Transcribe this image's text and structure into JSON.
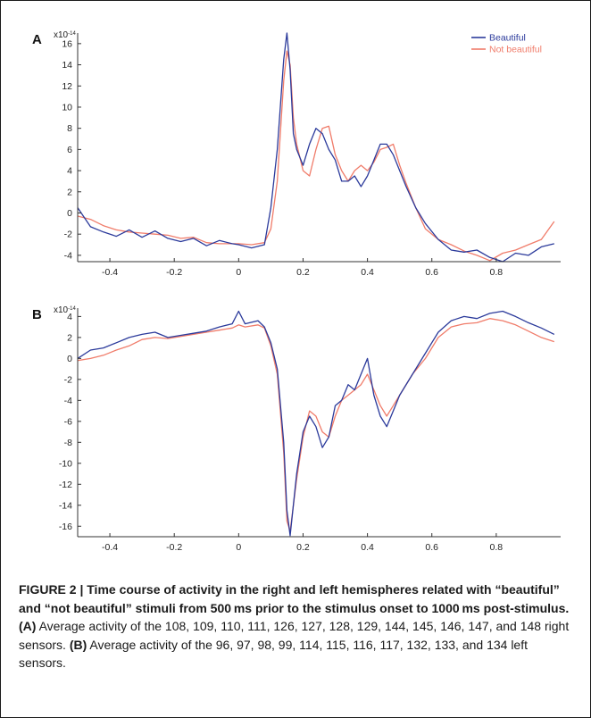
{
  "chart_data": [
    {
      "type": "line",
      "panel_label": "A",
      "scale_label": "x10",
      "scale_exponent": "-14",
      "xlim": [
        -0.5,
        1.0
      ],
      "ylim": [
        -4.6,
        17
      ],
      "x_ticks": [
        "-0.4",
        "-0.2",
        "0",
        "0.2",
        "0.4",
        "0.6",
        "0.8"
      ],
      "y_ticks": [
        "16",
        "14",
        "12",
        "10",
        "8",
        "6",
        "4",
        "2",
        "0",
        "-2",
        "-4"
      ],
      "legend": {
        "position": "top-right",
        "entries": [
          "Beautiful",
          "Not beautiful"
        ]
      },
      "series": [
        {
          "name": "Beautiful",
          "color": "#2b3a9b",
          "x": [
            -0.5,
            -0.46,
            -0.42,
            -0.38,
            -0.34,
            -0.3,
            -0.26,
            -0.22,
            -0.18,
            -0.14,
            -0.1,
            -0.06,
            -0.02,
            0.0,
            0.04,
            0.08,
            0.1,
            0.12,
            0.14,
            0.15,
            0.16,
            0.17,
            0.18,
            0.2,
            0.22,
            0.24,
            0.26,
            0.28,
            0.3,
            0.32,
            0.34,
            0.36,
            0.38,
            0.4,
            0.42,
            0.44,
            0.46,
            0.48,
            0.5,
            0.52,
            0.55,
            0.58,
            0.62,
            0.66,
            0.7,
            0.74,
            0.78,
            0.82,
            0.86,
            0.9,
            0.94,
            0.98
          ],
          "values": [
            0.5,
            -1.3,
            -1.8,
            -2.2,
            -1.6,
            -2.3,
            -1.7,
            -2.4,
            -2.7,
            -2.4,
            -3.1,
            -2.6,
            -2.9,
            -3.0,
            -3.3,
            -3.0,
            0.5,
            6.0,
            14.5,
            17.0,
            13.5,
            7.5,
            6.0,
            4.5,
            6.5,
            8.0,
            7.5,
            6.0,
            5.0,
            3.0,
            3.0,
            3.5,
            2.5,
            3.5,
            5.0,
            6.5,
            6.5,
            5.5,
            4.0,
            2.5,
            0.5,
            -1.0,
            -2.5,
            -3.5,
            -3.7,
            -3.5,
            -4.2,
            -4.6,
            -3.8,
            -4.0,
            -3.2,
            -2.9
          ]
        },
        {
          "name": "Not beautiful",
          "color": "#f07c6a",
          "x": [
            -0.5,
            -0.46,
            -0.42,
            -0.38,
            -0.34,
            -0.3,
            -0.26,
            -0.22,
            -0.18,
            -0.14,
            -0.1,
            -0.06,
            -0.02,
            0.0,
            0.04,
            0.08,
            0.1,
            0.12,
            0.14,
            0.15,
            0.16,
            0.17,
            0.18,
            0.2,
            0.22,
            0.24,
            0.26,
            0.28,
            0.3,
            0.32,
            0.34,
            0.36,
            0.38,
            0.4,
            0.42,
            0.44,
            0.46,
            0.48,
            0.5,
            0.52,
            0.55,
            0.58,
            0.62,
            0.66,
            0.7,
            0.74,
            0.78,
            0.82,
            0.86,
            0.9,
            0.94,
            0.98
          ],
          "values": [
            -0.3,
            -0.6,
            -1.2,
            -1.6,
            -1.8,
            -1.9,
            -2.0,
            -2.1,
            -2.4,
            -2.3,
            -2.8,
            -2.9,
            -2.9,
            -2.9,
            -3.0,
            -2.8,
            -1.5,
            3.0,
            12.5,
            15.3,
            14.0,
            9.0,
            6.5,
            4.0,
            3.5,
            6.0,
            8.0,
            8.2,
            5.5,
            4.0,
            3.0,
            4.0,
            4.5,
            4.0,
            4.8,
            6.0,
            6.2,
            6.5,
            4.5,
            2.8,
            0.5,
            -1.5,
            -2.5,
            -3.0,
            -3.6,
            -4.0,
            -4.5,
            -3.8,
            -3.5,
            -3.0,
            -2.5,
            -0.8
          ]
        }
      ]
    },
    {
      "type": "line",
      "panel_label": "B",
      "scale_label": "x10",
      "scale_exponent": "-14",
      "xlim": [
        -0.5,
        1.0
      ],
      "ylim": [
        -17,
        4.8
      ],
      "x_ticks": [
        "-0.4",
        "-0.2",
        "0",
        "0.2",
        "0.4",
        "0.6",
        "0.8"
      ],
      "y_ticks": [
        "4",
        "2",
        "0",
        "-2",
        "-4",
        "-6",
        "-8",
        "-10",
        "-12",
        "-14",
        "-16"
      ],
      "series": [
        {
          "name": "Beautiful",
          "color": "#2b3a9b",
          "x": [
            -0.5,
            -0.46,
            -0.42,
            -0.38,
            -0.34,
            -0.3,
            -0.26,
            -0.22,
            -0.18,
            -0.14,
            -0.1,
            -0.06,
            -0.02,
            0.0,
            0.02,
            0.06,
            0.08,
            0.1,
            0.12,
            0.14,
            0.15,
            0.16,
            0.18,
            0.2,
            0.22,
            0.24,
            0.26,
            0.28,
            0.3,
            0.32,
            0.34,
            0.36,
            0.38,
            0.4,
            0.42,
            0.44,
            0.46,
            0.48,
            0.5,
            0.54,
            0.58,
            0.62,
            0.66,
            0.7,
            0.74,
            0.78,
            0.82,
            0.86,
            0.9,
            0.94,
            0.98
          ],
          "values": [
            0.0,
            0.8,
            1.0,
            1.5,
            2.0,
            2.3,
            2.5,
            2.0,
            2.2,
            2.4,
            2.6,
            3.0,
            3.3,
            4.5,
            3.3,
            3.6,
            3.0,
            1.5,
            -1.0,
            -8.0,
            -14.5,
            -16.9,
            -11.0,
            -7.0,
            -5.5,
            -6.5,
            -8.5,
            -7.5,
            -4.5,
            -4.0,
            -2.5,
            -3.0,
            -1.5,
            0.0,
            -3.5,
            -5.5,
            -6.5,
            -5.0,
            -3.5,
            -1.5,
            0.5,
            2.5,
            3.6,
            4.0,
            3.8,
            4.3,
            4.5,
            4.0,
            3.4,
            2.9,
            2.3
          ]
        },
        {
          "name": "Not beautiful",
          "color": "#f07c6a",
          "x": [
            -0.5,
            -0.46,
            -0.42,
            -0.38,
            -0.34,
            -0.3,
            -0.26,
            -0.22,
            -0.18,
            -0.14,
            -0.1,
            -0.06,
            -0.02,
            0.0,
            0.02,
            0.06,
            0.08,
            0.1,
            0.12,
            0.14,
            0.15,
            0.16,
            0.18,
            0.2,
            0.22,
            0.24,
            0.26,
            0.28,
            0.3,
            0.32,
            0.34,
            0.36,
            0.38,
            0.4,
            0.42,
            0.44,
            0.46,
            0.48,
            0.5,
            0.54,
            0.58,
            0.62,
            0.66,
            0.7,
            0.74,
            0.78,
            0.82,
            0.86,
            0.9,
            0.94,
            0.98
          ],
          "values": [
            -0.2,
            0.0,
            0.3,
            0.8,
            1.2,
            1.8,
            2.0,
            1.9,
            2.1,
            2.3,
            2.5,
            2.7,
            2.9,
            3.2,
            3.0,
            3.2,
            2.9,
            1.2,
            -1.5,
            -9.0,
            -15.5,
            -16.5,
            -11.5,
            -7.5,
            -5.0,
            -5.5,
            -7.0,
            -7.5,
            -5.5,
            -4.0,
            -3.5,
            -3.0,
            -2.5,
            -1.5,
            -3.0,
            -4.5,
            -5.5,
            -4.5,
            -3.5,
            -1.5,
            0.0,
            2.0,
            3.0,
            3.3,
            3.4,
            3.8,
            3.6,
            3.2,
            2.6,
            2.0,
            1.6
          ]
        }
      ]
    }
  ],
  "caption": {
    "title": "FIGURE 2 | Time course of activity in the right and left hemispheres related with “beautiful” and “not beautiful” stimuli from 500 ms prior to the stimulus onset to 1000 ms post-stimulus.",
    "a_label": "(A)",
    "a_text": "Average activity of the 108, 109, 110, 111, 126, 127, 128, 129, 144, 145, 146, 147, and 148 right sensors.",
    "b_label": "(B)",
    "b_text": "Average activity of the 96, 97, 98, 99, 114, 115, 116, 117, 132, 133, and 134 left sensors."
  }
}
